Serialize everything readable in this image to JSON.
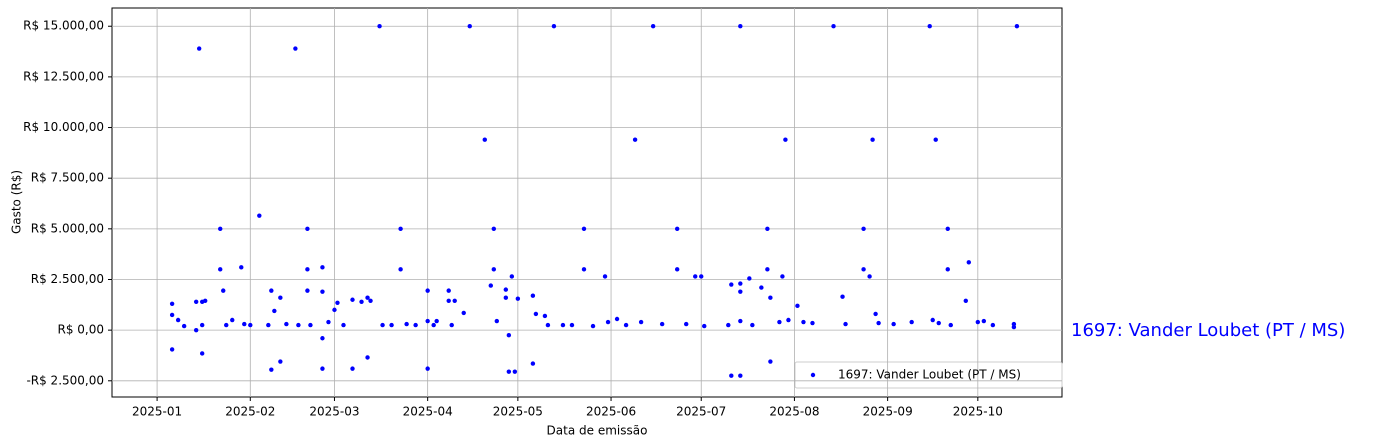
{
  "chart_data": {
    "type": "scatter",
    "xlabel": "Data de emissão",
    "ylabel": "Gasto (R$)",
    "annotation": "1697: Vander Loubet (PT / MS)",
    "legend": "lower right",
    "grid": true,
    "xlim": [
      "2024-12-17",
      "2025-10-29"
    ],
    "xticks": [
      "2025-01",
      "2025-02",
      "2025-03",
      "2025-04",
      "2025-05",
      "2025-06",
      "2025-07",
      "2025-08",
      "2025-09",
      "2025-10"
    ],
    "ylim": [
      -3300,
      15900
    ],
    "yticks": [
      {
        "value": -2500,
        "label": "-R$ 2.500,00"
      },
      {
        "value": 0,
        "label": "R$ 0,00"
      },
      {
        "value": 2500,
        "label": "R$ 2.500,00"
      },
      {
        "value": 5000,
        "label": "R$ 5.000,00"
      },
      {
        "value": 7500,
        "label": "R$ 7.500,00"
      },
      {
        "value": 10000,
        "label": "R$ 10.000,00"
      },
      {
        "value": 12500,
        "label": "R$ 12.500,00"
      },
      {
        "value": 15000,
        "label": "R$ 15.000,00"
      }
    ],
    "series": [
      {
        "name": "1697: Vander Loubet (PT / MS)",
        "color": "#0000ff",
        "x": [
          "2025-01-06",
          "2025-01-06",
          "2025-01-06",
          "2025-01-08",
          "2025-01-10",
          "2025-01-15",
          "2025-01-14",
          "2025-01-16",
          "2025-01-16",
          "2025-01-17",
          "2025-01-16",
          "2025-01-14",
          "2025-01-22",
          "2025-01-22",
          "2025-01-23",
          "2025-01-24",
          "2025-01-26",
          "2025-01-29",
          "2025-01-30",
          "2025-02-01",
          "2025-02-04",
          "2025-02-07",
          "2025-02-08",
          "2025-02-08",
          "2025-02-09",
          "2025-02-11",
          "2025-02-11",
          "2025-02-13",
          "2025-02-16",
          "2025-02-17",
          "2025-02-20",
          "2025-02-20",
          "2025-02-20",
          "2025-02-21",
          "2025-02-25",
          "2025-02-25",
          "2025-02-25",
          "2025-02-25",
          "2025-02-27",
          "2025-03-01",
          "2025-03-02",
          "2025-03-04",
          "2025-03-07",
          "2025-03-07",
          "2025-03-10",
          "2025-03-12",
          "2025-03-12",
          "2025-03-13",
          "2025-03-16",
          "2025-03-17",
          "2025-03-20",
          "2025-03-23",
          "2025-03-23",
          "2025-03-25",
          "2025-03-28",
          "2025-04-01",
          "2025-04-01",
          "2025-04-01",
          "2025-04-03",
          "2025-04-04",
          "2025-04-08",
          "2025-04-08",
          "2025-04-10",
          "2025-04-09",
          "2025-04-13",
          "2025-04-15",
          "2025-04-20",
          "2025-04-22",
          "2025-04-23",
          "2025-04-23",
          "2025-04-24",
          "2025-04-27",
          "2025-04-27",
          "2025-04-28",
          "2025-04-28",
          "2025-04-29",
          "2025-04-30",
          "2025-05-01",
          "2025-05-06",
          "2025-05-06",
          "2025-05-07",
          "2025-05-10",
          "2025-05-11",
          "2025-05-13",
          "2025-05-16",
          "2025-05-19",
          "2025-05-23",
          "2025-05-23",
          "2025-05-26",
          "2025-05-30",
          "2025-05-31",
          "2025-06-03",
          "2025-06-06",
          "2025-06-09",
          "2025-06-11",
          "2025-06-15",
          "2025-06-18",
          "2025-06-23",
          "2025-06-23",
          "2025-06-26",
          "2025-06-29",
          "2025-07-01",
          "2025-07-02",
          "2025-07-10",
          "2025-07-11",
          "2025-07-11",
          "2025-07-14",
          "2025-07-14",
          "2025-07-14",
          "2025-07-14",
          "2025-07-14",
          "2025-07-17",
          "2025-07-18",
          "2025-07-21",
          "2025-07-23",
          "2025-07-23",
          "2025-07-24",
          "2025-07-24",
          "2025-07-27",
          "2025-07-28",
          "2025-07-29",
          "2025-07-30",
          "2025-08-02",
          "2025-08-04",
          "2025-08-07",
          "2025-08-14",
          "2025-08-17",
          "2025-08-18",
          "2025-08-24",
          "2025-08-24",
          "2025-08-26",
          "2025-08-27",
          "2025-08-28",
          "2025-08-29",
          "2025-09-03",
          "2025-09-09",
          "2025-09-15",
          "2025-09-16",
          "2025-09-17",
          "2025-09-18",
          "2025-09-21",
          "2025-09-21",
          "2025-09-22",
          "2025-09-27",
          "2025-09-28",
          "2025-10-01",
          "2025-10-03",
          "2025-10-06",
          "2025-10-13",
          "2025-10-14",
          "2025-10-13"
        ],
        "values": [
          1300,
          750,
          -950,
          500,
          200,
          13900,
          1400,
          1400,
          -1150,
          1450,
          250,
          0,
          5000,
          3000,
          1950,
          250,
          500,
          3100,
          300,
          250,
          5650,
          250,
          1950,
          -1950,
          950,
          1600,
          -1550,
          300,
          13900,
          250,
          5000,
          3000,
          1950,
          250,
          3100,
          1900,
          -400,
          -1900,
          400,
          1000,
          1350,
          250,
          1500,
          -1900,
          1400,
          -1350,
          1600,
          1450,
          15000,
          250,
          250,
          5000,
          3000,
          300,
          250,
          450,
          1950,
          -1900,
          250,
          450,
          1950,
          1450,
          1450,
          250,
          850,
          15000,
          9400,
          2200,
          5000,
          3000,
          450,
          2000,
          1600,
          -2050,
          -250,
          2650,
          -2050,
          1550,
          1700,
          -1650,
          800,
          700,
          250,
          15000,
          250,
          250,
          5000,
          3000,
          200,
          2650,
          400,
          550,
          250,
          9400,
          400,
          15000,
          300,
          5000,
          3000,
          300,
          2650,
          2650,
          200,
          250,
          2250,
          -2250,
          450,
          15000,
          2300,
          1900,
          -2250,
          2550,
          250,
          2100,
          5000,
          3000,
          1600,
          -1550,
          400,
          2650,
          9400,
          500,
          1200,
          400,
          350,
          15000,
          1650,
          300,
          5000,
          3000,
          2650,
          9400,
          800,
          350,
          300,
          400,
          15000,
          500,
          9400,
          350,
          5000,
          3000,
          250,
          1450,
          3350,
          400,
          450,
          250,
          300,
          15000,
          150
        ]
      }
    ]
  }
}
